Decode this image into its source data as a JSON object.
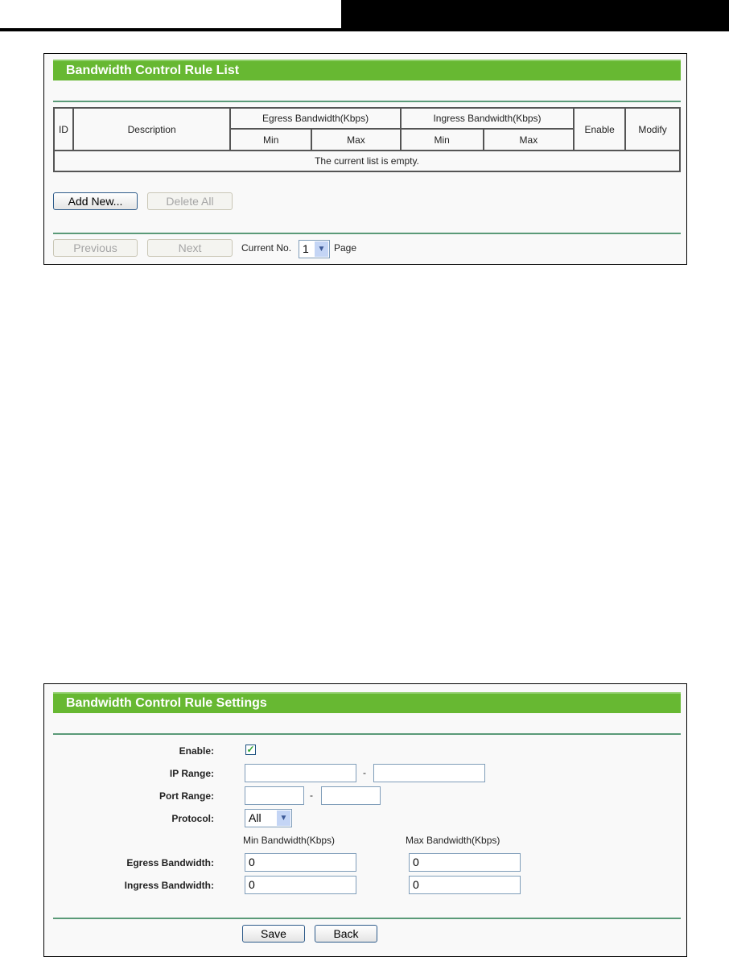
{
  "rule_list": {
    "title": "Bandwidth Control Rule List",
    "columns": {
      "id": "ID",
      "description": "Description",
      "egress": "Egress Bandwidth(Kbps)",
      "ingress": "Ingress Bandwidth(Kbps)",
      "min": "Min",
      "max": "Max",
      "enable": "Enable",
      "modify": "Modify"
    },
    "empty_message": "The current list is empty.",
    "add_new": "Add New...",
    "delete_all": "Delete All",
    "previous": "Previous",
    "next": "Next",
    "current_no_label": "Current No.",
    "current_page": "1",
    "page_label": "Page"
  },
  "rule_settings": {
    "title": "Bandwidth Control Rule Settings",
    "enable_label": "Enable:",
    "enable_checked": true,
    "ip_range_label": "IP Range:",
    "ip_start": "",
    "ip_end": "",
    "port_range_label": "Port Range:",
    "port_start": "",
    "port_end": "",
    "range_separator": "-",
    "protocol_label": "Protocol:",
    "protocol_value": "All",
    "min_header": "Min Bandwidth(Kbps)",
    "max_header": "Max Bandwidth(Kbps)",
    "egress_label": "Egress Bandwidth:",
    "egress_min": "0",
    "egress_max": "0",
    "ingress_label": "Ingress Bandwidth:",
    "ingress_min": "0",
    "ingress_max": "0",
    "save": "Save",
    "back": "Back"
  },
  "colors": {
    "header_green": "#67b832",
    "divider": "#5a9a78",
    "check": "#2ea32e"
  }
}
